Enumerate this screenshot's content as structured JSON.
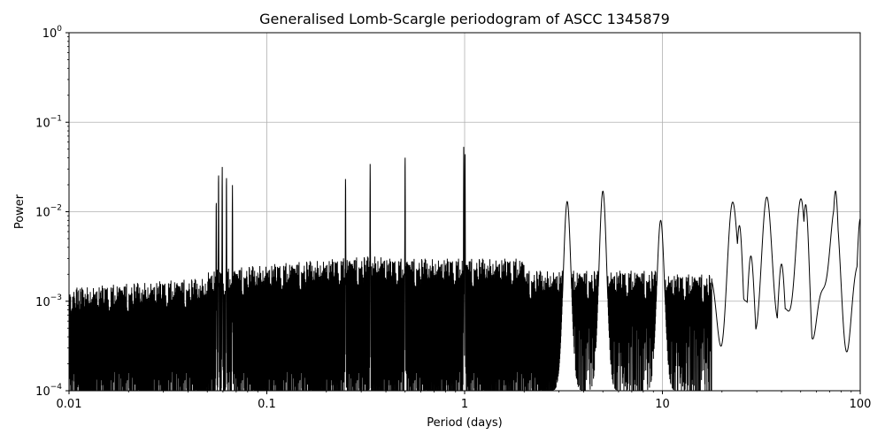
{
  "chart_data": {
    "type": "line",
    "title": "Generalised Lomb-Scargle periodogram of ASCC 1345879",
    "xlabel": "Period (days)",
    "ylabel": "Power",
    "x_scale": "log",
    "y_scale": "log",
    "xlim": [
      0.01,
      100
    ],
    "ylim": [
      0.0001,
      1
    ],
    "grid": true,
    "x_ticks": [
      {
        "value": 0.01,
        "label": "0.01"
      },
      {
        "value": 0.1,
        "label": "0.1"
      },
      {
        "value": 1,
        "label": "1"
      },
      {
        "value": 10,
        "label": "10"
      },
      {
        "value": 100,
        "label": "100"
      }
    ],
    "y_ticks": [
      {
        "value": 0.0001,
        "base": "10",
        "exp": "−4"
      },
      {
        "value": 0.001,
        "base": "10",
        "exp": "−3"
      },
      {
        "value": 0.01,
        "base": "10",
        "exp": "−2"
      },
      {
        "value": 0.1,
        "base": "10",
        "exp": "−1"
      },
      {
        "value": 1,
        "base": "10",
        "exp": "0"
      }
    ],
    "line_color": "#000000",
    "peaks": [
      {
        "period": 0.0555,
        "power": 0.014
      },
      {
        "period": 0.057,
        "power": 0.028
      },
      {
        "period": 0.0595,
        "power": 0.032
      },
      {
        "period": 0.0625,
        "power": 0.026
      },
      {
        "period": 0.067,
        "power": 0.02
      },
      {
        "period": 0.25,
        "power": 0.025
      },
      {
        "period": 0.333,
        "power": 0.035
      },
      {
        "period": 0.5,
        "power": 0.044
      },
      {
        "period": 0.99,
        "power": 0.058
      },
      {
        "period": 1.005,
        "power": 0.045
      },
      {
        "period": 3.3,
        "power": 0.013
      },
      {
        "period": 5.0,
        "power": 0.017
      },
      {
        "period": 9.8,
        "power": 0.008
      },
      {
        "period": 24.5,
        "power": 0.007
      },
      {
        "period": 28.0,
        "power": 0.0032
      },
      {
        "period": 40.0,
        "power": 0.0026
      },
      {
        "period": 53.0,
        "power": 0.012
      },
      {
        "period": 75.0,
        "power": 0.017
      },
      {
        "period": 100.0,
        "power": 0.0083
      }
    ]
  }
}
